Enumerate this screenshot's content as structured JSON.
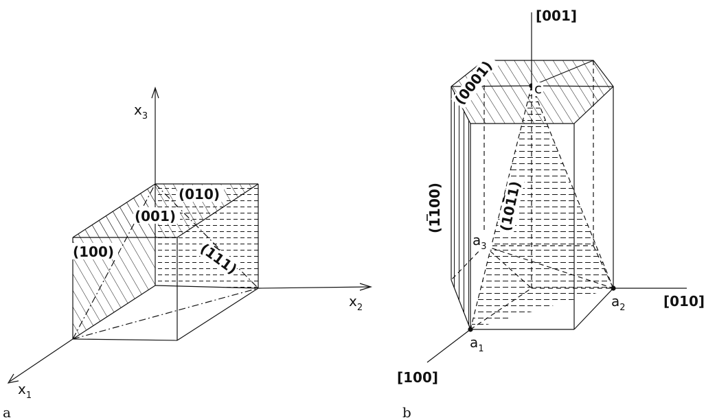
{
  "panel_a": {
    "caption": "a",
    "axes": {
      "x1": {
        "main": "x",
        "sub": "1"
      },
      "x2": {
        "main": "x",
        "sub": "2"
      },
      "x3": {
        "main": "x",
        "sub": "3"
      }
    },
    "planes": {
      "p100": "(100)",
      "p010": "(010)",
      "p001": "(001)",
      "p111": "(111)"
    }
  },
  "panel_b": {
    "caption": "b",
    "directions": {
      "d001": "[001]",
      "d010": "[010]",
      "d100": "[100]"
    },
    "planes": {
      "p0001": "(0001)",
      "p1100": "(1100)",
      "p1011": "(1011)"
    },
    "points": {
      "c": "c",
      "a1": {
        "main": "a",
        "sub": "1"
      },
      "a2": {
        "main": "a",
        "sub": "2"
      },
      "a3": {
        "main": "a",
        "sub": "3"
      }
    }
  },
  "colors": {
    "ink": "#111111",
    "background": "#ffffff"
  }
}
